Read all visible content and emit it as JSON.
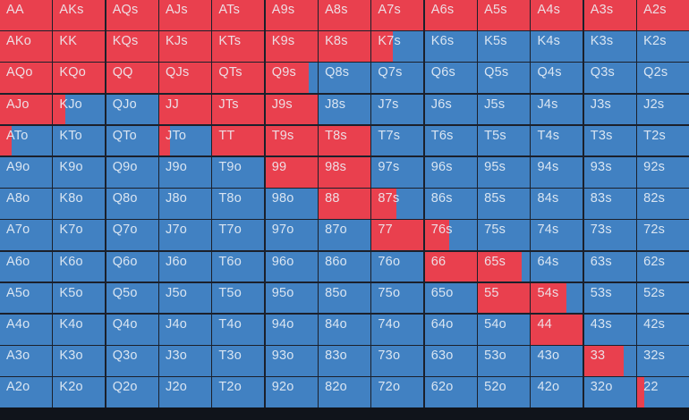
{
  "colors": {
    "selected": "#e9404e",
    "unselected": "#4181c2",
    "grid_line": "#1b202b",
    "bottom_bar": "#10141b",
    "label_text": "rgba(238,243,248,0.88)"
  },
  "grid": {
    "type": "poker-hand-range-matrix",
    "rows_count": 13,
    "cols_count": 13,
    "fill_note": "fill = percent of cell width shaded in selected (red) color, from left edge",
    "rows": [
      [
        {
          "label": "AA",
          "fill": 100
        },
        {
          "label": "AKs",
          "fill": 100
        },
        {
          "label": "AQs",
          "fill": 100
        },
        {
          "label": "AJs",
          "fill": 100
        },
        {
          "label": "ATs",
          "fill": 100
        },
        {
          "label": "A9s",
          "fill": 100
        },
        {
          "label": "A8s",
          "fill": 100
        },
        {
          "label": "A7s",
          "fill": 100
        },
        {
          "label": "A6s",
          "fill": 100
        },
        {
          "label": "A5s",
          "fill": 100
        },
        {
          "label": "A4s",
          "fill": 100
        },
        {
          "label": "A3s",
          "fill": 100
        },
        {
          "label": "A2s",
          "fill": 100
        }
      ],
      [
        {
          "label": "AKo",
          "fill": 100
        },
        {
          "label": "KK",
          "fill": 100
        },
        {
          "label": "KQs",
          "fill": 100
        },
        {
          "label": "KJs",
          "fill": 100
        },
        {
          "label": "KTs",
          "fill": 100
        },
        {
          "label": "K9s",
          "fill": 100
        },
        {
          "label": "K8s",
          "fill": 100
        },
        {
          "label": "K7s",
          "fill": 40
        },
        {
          "label": "K6s",
          "fill": 0
        },
        {
          "label": "K5s",
          "fill": 0
        },
        {
          "label": "K4s",
          "fill": 0
        },
        {
          "label": "K3s",
          "fill": 0
        },
        {
          "label": "K2s",
          "fill": 0
        }
      ],
      [
        {
          "label": "AQo",
          "fill": 100
        },
        {
          "label": "KQo",
          "fill": 100
        },
        {
          "label": "QQ",
          "fill": 100
        },
        {
          "label": "QJs",
          "fill": 100
        },
        {
          "label": "QTs",
          "fill": 100
        },
        {
          "label": "Q9s",
          "fill": 84
        },
        {
          "label": "Q8s",
          "fill": 0
        },
        {
          "label": "Q7s",
          "fill": 0
        },
        {
          "label": "Q6s",
          "fill": 0
        },
        {
          "label": "Q5s",
          "fill": 0
        },
        {
          "label": "Q4s",
          "fill": 0
        },
        {
          "label": "Q3s",
          "fill": 0
        },
        {
          "label": "Q2s",
          "fill": 0
        }
      ],
      [
        {
          "label": "AJo",
          "fill": 100
        },
        {
          "label": "KJo",
          "fill": 24
        },
        {
          "label": "QJo",
          "fill": 0
        },
        {
          "label": "JJ",
          "fill": 100
        },
        {
          "label": "JTs",
          "fill": 100
        },
        {
          "label": "J9s",
          "fill": 100
        },
        {
          "label": "J8s",
          "fill": 0
        },
        {
          "label": "J7s",
          "fill": 0
        },
        {
          "label": "J6s",
          "fill": 0
        },
        {
          "label": "J5s",
          "fill": 0
        },
        {
          "label": "J4s",
          "fill": 0
        },
        {
          "label": "J3s",
          "fill": 0
        },
        {
          "label": "J2s",
          "fill": 0
        }
      ],
      [
        {
          "label": "ATo",
          "fill": 22
        },
        {
          "label": "KTo",
          "fill": 0
        },
        {
          "label": "QTo",
          "fill": 0
        },
        {
          "label": "JTo",
          "fill": 20
        },
        {
          "label": "TT",
          "fill": 100
        },
        {
          "label": "T9s",
          "fill": 100
        },
        {
          "label": "T8s",
          "fill": 100
        },
        {
          "label": "T7s",
          "fill": 0
        },
        {
          "label": "T6s",
          "fill": 0
        },
        {
          "label": "T5s",
          "fill": 0
        },
        {
          "label": "T4s",
          "fill": 0
        },
        {
          "label": "T3s",
          "fill": 0
        },
        {
          "label": "T2s",
          "fill": 0
        }
      ],
      [
        {
          "label": "A9o",
          "fill": 0
        },
        {
          "label": "K9o",
          "fill": 0
        },
        {
          "label": "Q9o",
          "fill": 0
        },
        {
          "label": "J9o",
          "fill": 0
        },
        {
          "label": "T9o",
          "fill": 0
        },
        {
          "label": "99",
          "fill": 100
        },
        {
          "label": "98s",
          "fill": 100
        },
        {
          "label": "97s",
          "fill": 0
        },
        {
          "label": "96s",
          "fill": 0
        },
        {
          "label": "95s",
          "fill": 0
        },
        {
          "label": "94s",
          "fill": 0
        },
        {
          "label": "93s",
          "fill": 0
        },
        {
          "label": "92s",
          "fill": 0
        }
      ],
      [
        {
          "label": "A8o",
          "fill": 0
        },
        {
          "label": "K8o",
          "fill": 0
        },
        {
          "label": "Q8o",
          "fill": 0
        },
        {
          "label": "J8o",
          "fill": 0
        },
        {
          "label": "T8o",
          "fill": 0
        },
        {
          "label": "98o",
          "fill": 0
        },
        {
          "label": "88",
          "fill": 100
        },
        {
          "label": "87s",
          "fill": 47
        },
        {
          "label": "86s",
          "fill": 0
        },
        {
          "label": "85s",
          "fill": 0
        },
        {
          "label": "84s",
          "fill": 0
        },
        {
          "label": "83s",
          "fill": 0
        },
        {
          "label": "82s",
          "fill": 0
        }
      ],
      [
        {
          "label": "A7o",
          "fill": 0
        },
        {
          "label": "K7o",
          "fill": 0
        },
        {
          "label": "Q7o",
          "fill": 0
        },
        {
          "label": "J7o",
          "fill": 0
        },
        {
          "label": "T7o",
          "fill": 0
        },
        {
          "label": "97o",
          "fill": 0
        },
        {
          "label": "87o",
          "fill": 0
        },
        {
          "label": "77",
          "fill": 100
        },
        {
          "label": "76s",
          "fill": 47
        },
        {
          "label": "75s",
          "fill": 0
        },
        {
          "label": "74s",
          "fill": 0
        },
        {
          "label": "73s",
          "fill": 0
        },
        {
          "label": "72s",
          "fill": 0
        }
      ],
      [
        {
          "label": "A6o",
          "fill": 0
        },
        {
          "label": "K6o",
          "fill": 0
        },
        {
          "label": "Q6o",
          "fill": 0
        },
        {
          "label": "J6o",
          "fill": 0
        },
        {
          "label": "T6o",
          "fill": 0
        },
        {
          "label": "96o",
          "fill": 0
        },
        {
          "label": "86o",
          "fill": 0
        },
        {
          "label": "76o",
          "fill": 0
        },
        {
          "label": "66",
          "fill": 100
        },
        {
          "label": "65s",
          "fill": 84
        },
        {
          "label": "64s",
          "fill": 0
        },
        {
          "label": "63s",
          "fill": 0
        },
        {
          "label": "62s",
          "fill": 0
        }
      ],
      [
        {
          "label": "A5o",
          "fill": 0
        },
        {
          "label": "K5o",
          "fill": 0
        },
        {
          "label": "Q5o",
          "fill": 0
        },
        {
          "label": "J5o",
          "fill": 0
        },
        {
          "label": "T5o",
          "fill": 0
        },
        {
          "label": "95o",
          "fill": 0
        },
        {
          "label": "85o",
          "fill": 0
        },
        {
          "label": "75o",
          "fill": 0
        },
        {
          "label": "65o",
          "fill": 0
        },
        {
          "label": "55",
          "fill": 100
        },
        {
          "label": "54s",
          "fill": 68
        },
        {
          "label": "53s",
          "fill": 0
        },
        {
          "label": "52s",
          "fill": 0
        }
      ],
      [
        {
          "label": "A4o",
          "fill": 0
        },
        {
          "label": "K4o",
          "fill": 0
        },
        {
          "label": "Q4o",
          "fill": 0
        },
        {
          "label": "J4o",
          "fill": 0
        },
        {
          "label": "T4o",
          "fill": 0
        },
        {
          "label": "94o",
          "fill": 0
        },
        {
          "label": "84o",
          "fill": 0
        },
        {
          "label": "74o",
          "fill": 0
        },
        {
          "label": "64o",
          "fill": 0
        },
        {
          "label": "54o",
          "fill": 0
        },
        {
          "label": "44",
          "fill": 100
        },
        {
          "label": "43s",
          "fill": 0
        },
        {
          "label": "42s",
          "fill": 0
        }
      ],
      [
        {
          "label": "A3o",
          "fill": 0
        },
        {
          "label": "K3o",
          "fill": 0
        },
        {
          "label": "Q3o",
          "fill": 0
        },
        {
          "label": "J3o",
          "fill": 0
        },
        {
          "label": "T3o",
          "fill": 0
        },
        {
          "label": "93o",
          "fill": 0
        },
        {
          "label": "83o",
          "fill": 0
        },
        {
          "label": "73o",
          "fill": 0
        },
        {
          "label": "63o",
          "fill": 0
        },
        {
          "label": "53o",
          "fill": 0
        },
        {
          "label": "43o",
          "fill": 0
        },
        {
          "label": "33",
          "fill": 76
        },
        {
          "label": "32s",
          "fill": 0
        }
      ],
      [
        {
          "label": "A2o",
          "fill": 0
        },
        {
          "label": "K2o",
          "fill": 0
        },
        {
          "label": "Q2o",
          "fill": 0
        },
        {
          "label": "J2o",
          "fill": 0
        },
        {
          "label": "T2o",
          "fill": 0
        },
        {
          "label": "92o",
          "fill": 0
        },
        {
          "label": "82o",
          "fill": 0
        },
        {
          "label": "72o",
          "fill": 0
        },
        {
          "label": "62o",
          "fill": 0
        },
        {
          "label": "52o",
          "fill": 0
        },
        {
          "label": "42o",
          "fill": 0
        },
        {
          "label": "32o",
          "fill": 0
        },
        {
          "label": "22",
          "fill": 14
        }
      ]
    ]
  }
}
